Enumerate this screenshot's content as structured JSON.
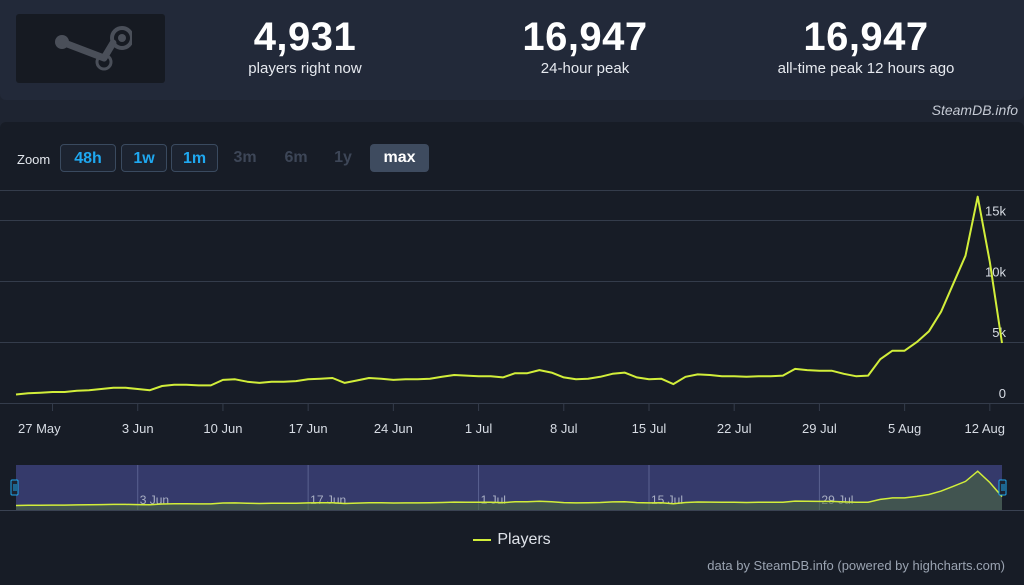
{
  "stats": [
    {
      "value": "4,931",
      "label": "players right now"
    },
    {
      "value": "16,947",
      "label": "24-hour peak"
    },
    {
      "value": "16,947",
      "label": "all-time peak 12 hours ago"
    }
  ],
  "logo": {
    "icon": "steam-logo-icon"
  },
  "source_label": "SteamDB.info",
  "zoom": {
    "label": "Zoom",
    "buttons": [
      {
        "label": "48h",
        "state": "active"
      },
      {
        "label": "1w",
        "state": "active"
      },
      {
        "label": "1m",
        "state": "active"
      },
      {
        "label": "3m",
        "state": "disabled"
      },
      {
        "label": "6m",
        "state": "disabled"
      },
      {
        "label": "1y",
        "state": "disabled"
      },
      {
        "label": "max",
        "state": "selected"
      }
    ]
  },
  "legend": {
    "label": "Players"
  },
  "credits": "data by SteamDB.info (powered by highcharts.com)",
  "colors": {
    "line": "#d2ee3a",
    "grid": "#343c4b",
    "navigator_fill": "#353a6b",
    "accent": "#1fa8f0"
  },
  "chart_data": {
    "type": "line",
    "series": [
      {
        "name": "Players",
        "x": [
          "2024-05-24",
          "2024-05-25",
          "2024-05-26",
          "2024-05-27",
          "2024-05-28",
          "2024-05-29",
          "2024-05-30",
          "2024-05-31",
          "2024-06-01",
          "2024-06-02",
          "2024-06-03",
          "2024-06-04",
          "2024-06-05",
          "2024-06-06",
          "2024-06-07",
          "2024-06-08",
          "2024-06-09",
          "2024-06-10",
          "2024-06-11",
          "2024-06-12",
          "2024-06-13",
          "2024-06-14",
          "2024-06-15",
          "2024-06-16",
          "2024-06-17",
          "2024-06-18",
          "2024-06-19",
          "2024-06-20",
          "2024-06-21",
          "2024-06-22",
          "2024-06-23",
          "2024-06-24",
          "2024-06-25",
          "2024-06-26",
          "2024-06-27",
          "2024-06-28",
          "2024-06-29",
          "2024-06-30",
          "2024-07-01",
          "2024-07-02",
          "2024-07-03",
          "2024-07-04",
          "2024-07-05",
          "2024-07-06",
          "2024-07-07",
          "2024-07-08",
          "2024-07-09",
          "2024-07-10",
          "2024-07-11",
          "2024-07-12",
          "2024-07-13",
          "2024-07-14",
          "2024-07-15",
          "2024-07-16",
          "2024-07-17",
          "2024-07-18",
          "2024-07-19",
          "2024-07-20",
          "2024-07-21",
          "2024-07-22",
          "2024-07-23",
          "2024-07-24",
          "2024-07-25",
          "2024-07-26",
          "2024-07-27",
          "2024-07-28",
          "2024-07-29",
          "2024-07-30",
          "2024-07-31",
          "2024-08-01",
          "2024-08-02",
          "2024-08-03",
          "2024-08-04",
          "2024-08-05",
          "2024-08-06",
          "2024-08-07",
          "2024-08-08",
          "2024-08-09",
          "2024-08-10",
          "2024-08-11",
          "2024-08-12",
          "2024-08-13"
        ],
        "y": [
          700,
          800,
          850,
          900,
          900,
          1000,
          1050,
          1150,
          1250,
          1250,
          1150,
          1050,
          1400,
          1500,
          1500,
          1450,
          1450,
          1900,
          1950,
          1750,
          1650,
          1750,
          1750,
          1800,
          1950,
          2000,
          2050,
          1650,
          1850,
          2050,
          2000,
          1900,
          1950,
          1950,
          2000,
          2150,
          2300,
          2250,
          2200,
          2200,
          2100,
          2450,
          2450,
          2700,
          2500,
          2100,
          1950,
          2000,
          2150,
          2400,
          2500,
          2100,
          1950,
          2000,
          1550,
          2150,
          2350,
          2300,
          2200,
          2200,
          2150,
          2200,
          2200,
          2250,
          2800,
          2700,
          2650,
          2650,
          2400,
          2200,
          2250,
          3600,
          4300,
          4300,
          5000,
          5900,
          7500,
          9800,
          12100,
          16947,
          11600,
          4931
        ]
      }
    ],
    "x_tick_labels": [
      "27 May",
      "3 Jun",
      "10 Jun",
      "17 Jun",
      "24 Jun",
      "1 Jul",
      "8 Jul",
      "15 Jul",
      "22 Jul",
      "29 Jul",
      "5 Aug",
      "12 Aug"
    ],
    "y_tick_labels": [
      "0",
      "5k",
      "10k",
      "15k"
    ],
    "ylim": [
      0,
      17500
    ],
    "grid": true,
    "legend_position": "bottom-center",
    "navigator": {
      "tick_labels": [
        "3 Jun",
        "17 Jun",
        "1 Jul",
        "15 Jul",
        "29 Jul"
      ]
    }
  }
}
